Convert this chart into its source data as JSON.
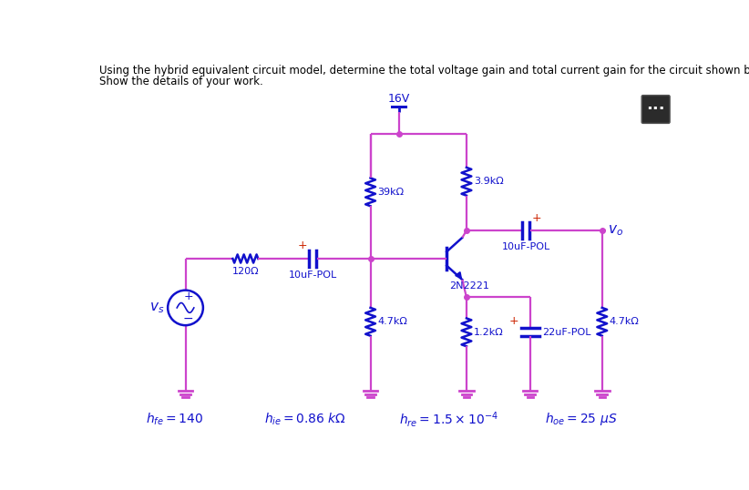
{
  "title_line1": "Using the hybrid equivalent circuit model, determine the total voltage gain and total current gain for the circuit shown below.",
  "title_line2": "Show the details of your work.",
  "bg_color": "#ffffff",
  "wire_color": "#cc44cc",
  "comp_color": "#1111cc",
  "red_color": "#cc2200",
  "vcc": "16V",
  "r1": "39kΩ",
  "r2": "3.9kΩ",
  "r3": "4.7kΩ",
  "r4": "1.2kΩ",
  "r5": "4.7kΩ",
  "rs": "120Ω",
  "c1": "10uF-POL",
  "c2": "10uF-POL",
  "c3": "22uF-POL",
  "tr": "2N2221",
  "hfe": "$h_{fe} = 140$",
  "hie": "$h_{ie} = 0.86\\ k\\Omega$",
  "hre": "$h_{re} = 1.5 \\times 10^{-4}$",
  "hoe": "$h_{oe} = 25\\ \\mu S$"
}
